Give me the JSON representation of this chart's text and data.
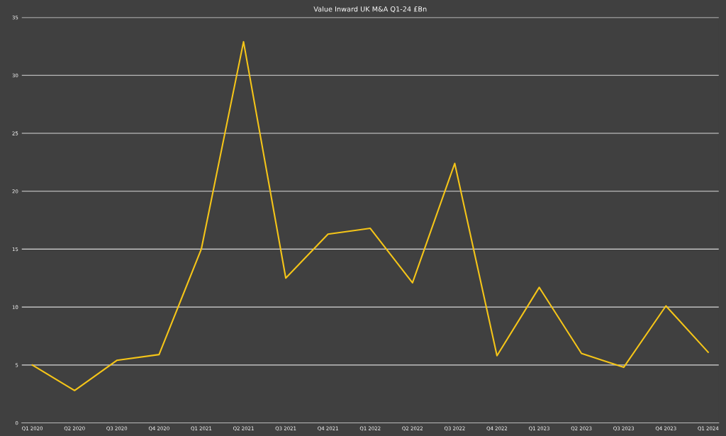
{
  "chart_data": {
    "type": "line",
    "title": "Value Inward UK M&A Q1-24 £Bn",
    "categories": [
      "Q1 2020",
      "Q2 2020",
      "Q3 2020",
      "Q4 2020",
      "Q1 2021",
      "Q2 2021",
      "Q3 2021",
      "Q4 2021",
      "Q1 2022",
      "Q2 2022",
      "Q3 2022",
      "Q4 2022",
      "Q1 2023",
      "Q2 2023",
      "Q3 2023",
      "Q4 2023",
      "Q1 2024"
    ],
    "series": [
      {
        "color": "#f5c518",
        "values": [
          5.0,
          2.8,
          5.4,
          5.9,
          15.0,
          32.9,
          12.5,
          16.3,
          16.8,
          12.1,
          22.4,
          5.8,
          11.7,
          6.0,
          4.8,
          10.1,
          6.1
        ]
      }
    ],
    "ylim": [
      0,
      35
    ],
    "yticks": [
      0,
      5,
      10,
      15,
      20,
      25,
      30,
      35
    ],
    "grid": "y",
    "legend": false,
    "marker": "none",
    "line_style": "solid"
  }
}
